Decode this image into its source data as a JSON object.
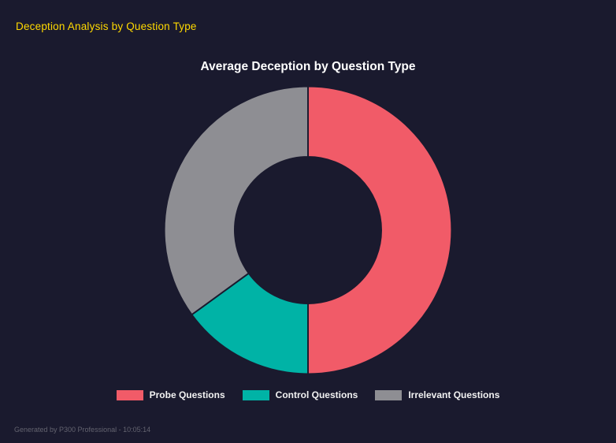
{
  "page": {
    "background": "#1a1a2e"
  },
  "header": {
    "title": "Deception Analysis by Question Type",
    "color": "#ffd900"
  },
  "chart_data": {
    "type": "pie",
    "subtype": "donut",
    "title": "Average Deception by Question Type",
    "labels": [
      "Probe Questions",
      "Control Questions",
      "Irrelevant Questions"
    ],
    "values": [
      50,
      15,
      35
    ],
    "colors": [
      "#f15b68",
      "#00b3a6",
      "#8e8e93"
    ],
    "legend_position": "bottom",
    "hole_ratio": 0.51,
    "start_angle_deg": 0,
    "direction": "clockwise"
  },
  "footer": {
    "text": "Generated by P300 Professional - 10:05:14"
  }
}
